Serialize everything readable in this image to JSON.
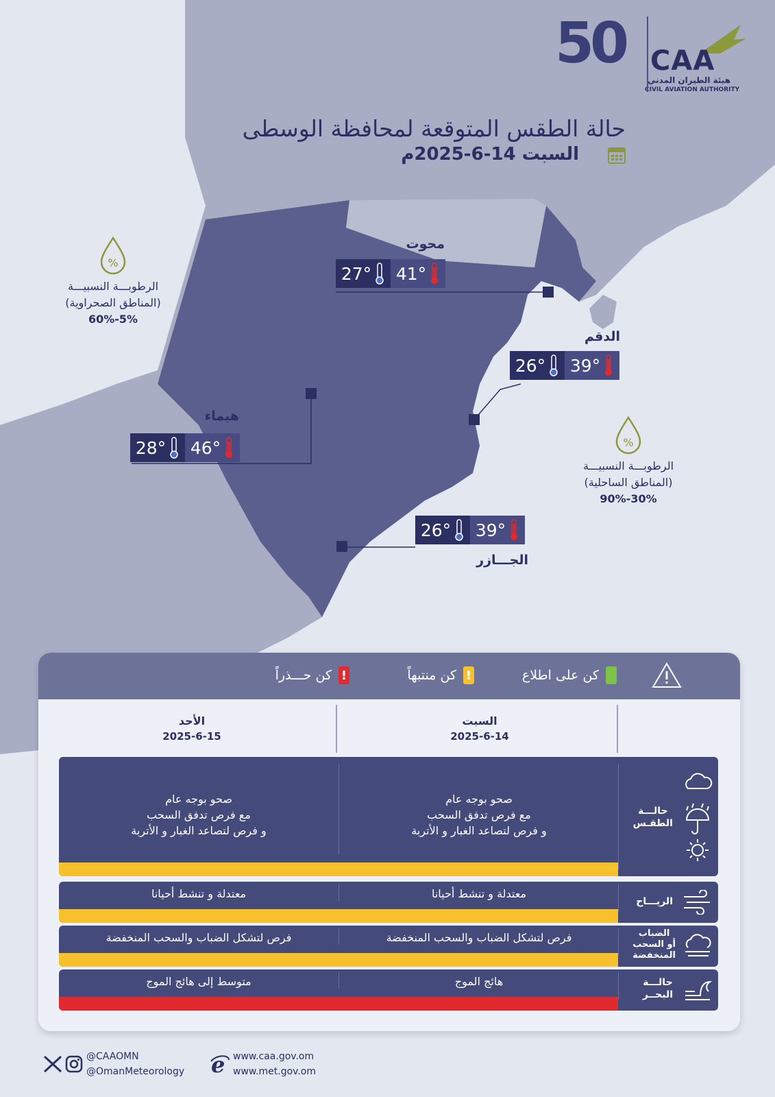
{
  "header": {
    "caa_logo_text": "CAA",
    "caa_arabic": "هيئة الطيران المدني",
    "caa_english": "CIVIL AVIATION AUTHORITY",
    "anniv_number": "50",
    "title": "حالة الطقس المتوقعة لمحافظة الوسطى",
    "date": "السبت 14-6-2025م"
  },
  "humidity": {
    "desert": {
      "label": "الرطوبـــة النسبيـــة",
      "zone": "(المناطق الصحراوية)",
      "range": "5%-60%"
    },
    "coastal": {
      "label": "الرطوبـــة النسبيـــة",
      "zone": "(المناطق الساحلية)",
      "range": "30%-90%"
    }
  },
  "stations": [
    {
      "name": "محوت",
      "max": "41°",
      "min": "27°"
    },
    {
      "name": "الدقم",
      "max": "39°",
      "min": "26°"
    },
    {
      "name": "هيماء",
      "max": "46°",
      "min": "28°"
    },
    {
      "name": "الجـــازر",
      "max": "39°",
      "min": "26°"
    }
  ],
  "legend": {
    "inform": "كن على اطلاع",
    "aware": "كن منتبهاً",
    "caution": "كن حـــذراً",
    "colors": {
      "inform": "#7fc24a",
      "aware": "#f6c12d",
      "caution": "#e02a2f"
    }
  },
  "days": [
    {
      "name": "السبت",
      "date": "2025-6-14"
    },
    {
      "name": "الأحد",
      "date": "2025-6-15"
    }
  ],
  "rows": [
    {
      "label1": "حالـــة",
      "label2": "الطقـس",
      "label3": "",
      "icons": [
        "cloud-icon",
        "rain-umbrella-icon",
        "sun-icon"
      ],
      "sat": [
        "صحو بوجه عام",
        "مع فرص تدفق السحب",
        "و فرص لتصاعد الغبار و الأتربة"
      ],
      "sun": [
        "صحو بوجه عام",
        "مع فرص تدفق السحب",
        "و فرص لتصاعد الغبار و الأتربة"
      ],
      "level": "aware"
    },
    {
      "label1": "الريـــاح",
      "label2": "",
      "label3": "",
      "icons": [
        "wind-icon"
      ],
      "sat": [
        "معتدلة و تنشط أحيانا"
      ],
      "sun": [
        "معتدلة و تنشط أحيانا"
      ],
      "level": "aware"
    },
    {
      "label1": "الضباب",
      "label2": "أو السحب",
      "label3": "المنخفضة",
      "icons": [
        "fog-icon"
      ],
      "sat": [
        "فرص لتشكل الضباب والسحب المنخفضة"
      ],
      "sun": [
        "فرص لتشكل الضباب والسحب المنخفضة"
      ],
      "level": "aware"
    },
    {
      "label1": "حالـــة",
      "label2": "البحــر",
      "label3": "",
      "icons": [
        "wave-icon"
      ],
      "sat": [
        "هائج الموج"
      ],
      "sun": [
        "متوسط إلى هائج الموج"
      ],
      "level": "caution"
    }
  ],
  "footer": {
    "handle1": "@CAAOMN",
    "handle2": "@OmanMeteorology",
    "site1": "www.caa.gov.om",
    "site2": "www.met.gov.om"
  }
}
